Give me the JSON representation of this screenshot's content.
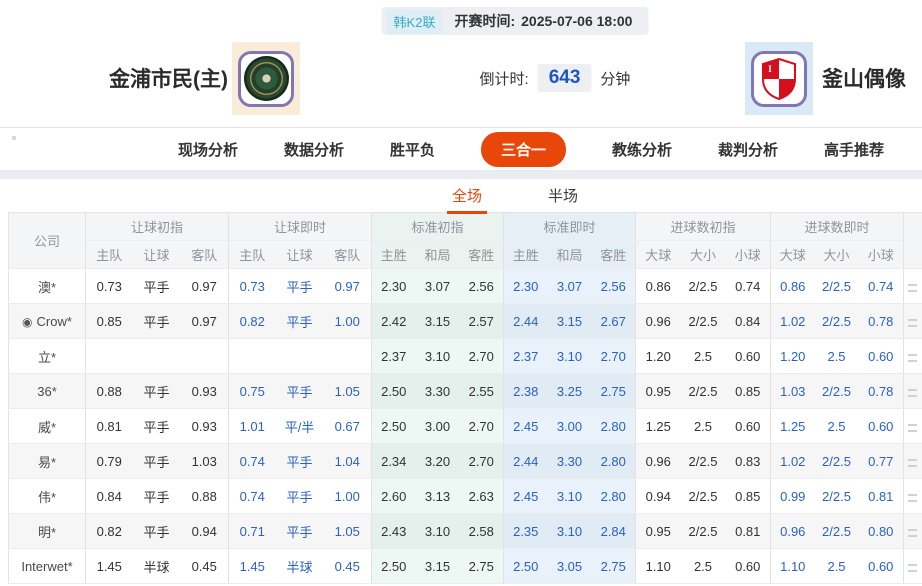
{
  "colors": {
    "accent_orange": "#e94609",
    "live_blue": "#2a62c2",
    "badge_cyan": "#3aabc8"
  },
  "header": {
    "league_badge": "韩K2联",
    "kickoff_label": "开赛时间:",
    "kickoff_time": "2025-07-06 18:00",
    "home_team": "金浦市民(主)",
    "away_team": "釜山偶像",
    "countdown_label": "倒计时:",
    "countdown_value": "643",
    "countdown_unit": "分钟"
  },
  "nav": {
    "tabs": [
      {
        "label": "现场分析",
        "active": false
      },
      {
        "label": "数据分析",
        "active": false
      },
      {
        "label": "胜平负",
        "active": false
      },
      {
        "label": "三合一",
        "active": true
      },
      {
        "label": "教练分析",
        "active": false
      },
      {
        "label": "裁判分析",
        "active": false
      },
      {
        "label": "高手推荐",
        "active": false
      }
    ]
  },
  "subtabs": [
    {
      "label": "全场",
      "active": true
    },
    {
      "label": "半场",
      "active": false
    }
  ],
  "table": {
    "company_header": "公司",
    "groups": [
      {
        "label": "让球初指",
        "cols": [
          "主队",
          "让球",
          "客队"
        ],
        "live": false,
        "tint": "none"
      },
      {
        "label": "让球即时",
        "cols": [
          "主队",
          "让球",
          "客队"
        ],
        "live": true,
        "tint": "none"
      },
      {
        "label": "标准初指",
        "cols": [
          "主胜",
          "和局",
          "客胜"
        ],
        "live": false,
        "tint": "std-init"
      },
      {
        "label": "标准即时",
        "cols": [
          "主胜",
          "和局",
          "客胜"
        ],
        "live": true,
        "tint": "std-live"
      },
      {
        "label": "进球数初指",
        "cols": [
          "大球",
          "大小",
          "小球"
        ],
        "live": false,
        "tint": "none"
      },
      {
        "label": "进球数即时",
        "cols": [
          "大球",
          "大小",
          "小球"
        ],
        "live": true,
        "tint": "none"
      }
    ],
    "rows": [
      {
        "company": "澳*",
        "has_icon": false,
        "cells": [
          [
            "0.73",
            "平手",
            "0.97"
          ],
          [
            "0.73",
            "平手",
            "0.97"
          ],
          [
            "2.30",
            "3.07",
            "2.56"
          ],
          [
            "2.30",
            "3.07",
            "2.56"
          ],
          [
            "0.86",
            "2/2.5",
            "0.74"
          ],
          [
            "0.86",
            "2/2.5",
            "0.74"
          ]
        ]
      },
      {
        "company": "Crow*",
        "has_icon": true,
        "cells": [
          [
            "0.85",
            "平手",
            "0.97"
          ],
          [
            "0.82",
            "平手",
            "1.00"
          ],
          [
            "2.42",
            "3.15",
            "2.57"
          ],
          [
            "2.44",
            "3.15",
            "2.67"
          ],
          [
            "0.96",
            "2/2.5",
            "0.84"
          ],
          [
            "1.02",
            "2/2.5",
            "0.78"
          ]
        ]
      },
      {
        "company": "立*",
        "has_icon": false,
        "cells": [
          [
            "",
            "",
            ""
          ],
          [
            "",
            "",
            ""
          ],
          [
            "2.37",
            "3.10",
            "2.70"
          ],
          [
            "2.37",
            "3.10",
            "2.70"
          ],
          [
            "1.20",
            "2.5",
            "0.60"
          ],
          [
            "1.20",
            "2.5",
            "0.60"
          ]
        ]
      },
      {
        "company": "36*",
        "has_icon": false,
        "cells": [
          [
            "0.88",
            "平手",
            "0.93"
          ],
          [
            "0.75",
            "平手",
            "1.05"
          ],
          [
            "2.50",
            "3.30",
            "2.55"
          ],
          [
            "2.38",
            "3.25",
            "2.75"
          ],
          [
            "0.95",
            "2/2.5",
            "0.85"
          ],
          [
            "1.03",
            "2/2.5",
            "0.78"
          ]
        ]
      },
      {
        "company": "威*",
        "has_icon": false,
        "cells": [
          [
            "0.81",
            "平手",
            "0.93"
          ],
          [
            "1.01",
            "平/半",
            "0.67"
          ],
          [
            "2.50",
            "3.00",
            "2.70"
          ],
          [
            "2.45",
            "3.00",
            "2.80"
          ],
          [
            "1.25",
            "2.5",
            "0.60"
          ],
          [
            "1.25",
            "2.5",
            "0.60"
          ]
        ]
      },
      {
        "company": "易*",
        "has_icon": false,
        "cells": [
          [
            "0.79",
            "平手",
            "1.03"
          ],
          [
            "0.74",
            "平手",
            "1.04"
          ],
          [
            "2.34",
            "3.20",
            "2.70"
          ],
          [
            "2.44",
            "3.30",
            "2.80"
          ],
          [
            "0.96",
            "2/2.5",
            "0.83"
          ],
          [
            "1.02",
            "2/2.5",
            "0.77"
          ]
        ]
      },
      {
        "company": "伟*",
        "has_icon": false,
        "cells": [
          [
            "0.84",
            "平手",
            "0.88"
          ],
          [
            "0.74",
            "平手",
            "1.00"
          ],
          [
            "2.60",
            "3.13",
            "2.63"
          ],
          [
            "2.45",
            "3.10",
            "2.80"
          ],
          [
            "0.94",
            "2/2.5",
            "0.85"
          ],
          [
            "0.99",
            "2/2.5",
            "0.81"
          ]
        ]
      },
      {
        "company": "明*",
        "has_icon": false,
        "cells": [
          [
            "0.82",
            "平手",
            "0.94"
          ],
          [
            "0.71",
            "平手",
            "1.05"
          ],
          [
            "2.43",
            "3.10",
            "2.58"
          ],
          [
            "2.35",
            "3.10",
            "2.84"
          ],
          [
            "0.95",
            "2/2.5",
            "0.81"
          ],
          [
            "0.96",
            "2/2.5",
            "0.80"
          ]
        ]
      },
      {
        "company": "Interwet*",
        "has_icon": false,
        "cells": [
          [
            "1.45",
            "半球",
            "0.45"
          ],
          [
            "1.45",
            "半球",
            "0.45"
          ],
          [
            "2.50",
            "3.15",
            "2.75"
          ],
          [
            "2.50",
            "3.05",
            "2.75"
          ],
          [
            "1.10",
            "2.5",
            "0.60"
          ],
          [
            "1.10",
            "2.5",
            "0.60"
          ]
        ]
      }
    ]
  }
}
